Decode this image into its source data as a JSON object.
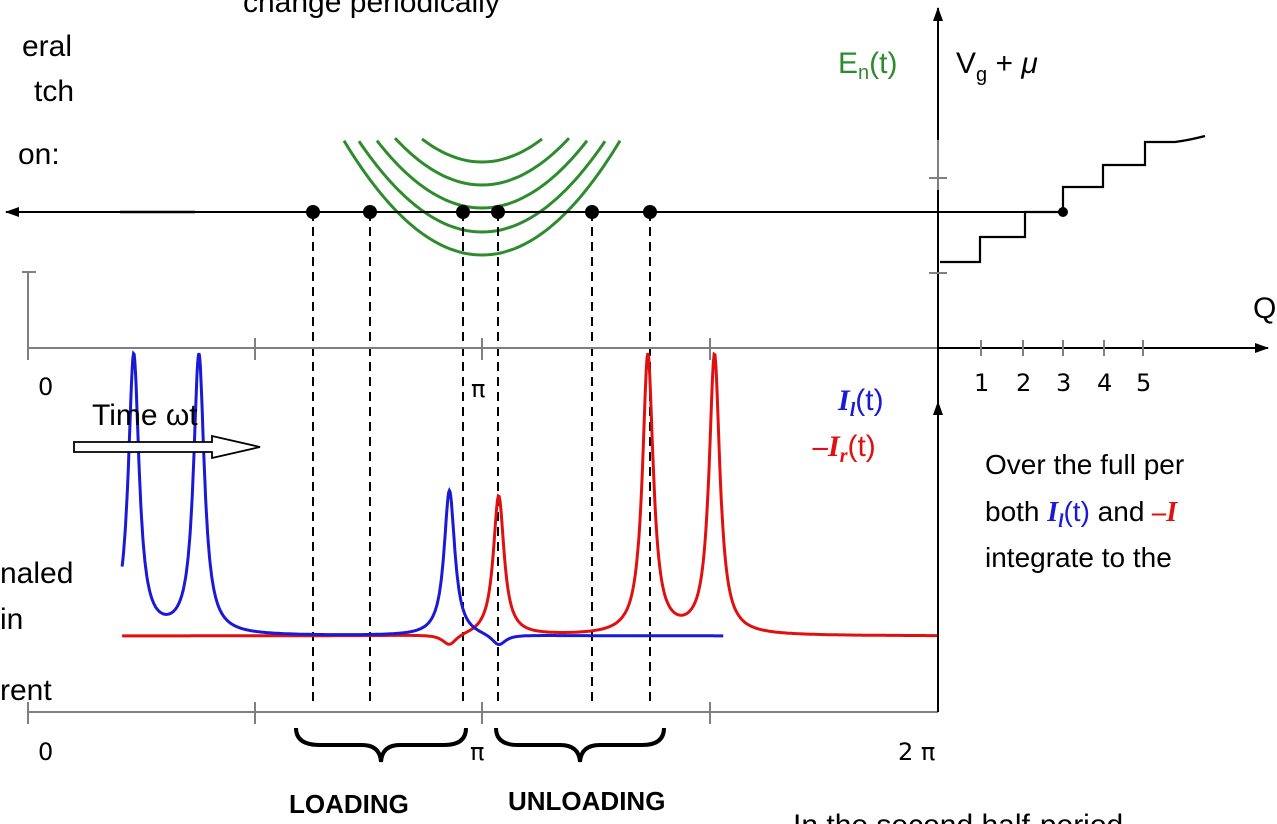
{
  "colors": {
    "green": "#2e8b2e",
    "blue": "#1a1ad6",
    "red": "#e01010",
    "black": "#000000",
    "gray": "#7a7a7a"
  },
  "text": {
    "top_caption": "change periodically",
    "left_line1": "eral",
    "left_line2": "tch",
    "left_line3": "on:",
    "left_lower1": "naled",
    "left_lower2": "in",
    "left_lower3": "rent",
    "en_label": "E",
    "en_sub": "n",
    "en_tail": "(t)",
    "vg_label": "V",
    "vg_sub": "g",
    "vg_tail": " + ",
    "mu": "μ",
    "q_label": "Q",
    "time_label": "Time ωt",
    "il_sym": "I",
    "il_sub": "l",
    "t_suffix": "(t)",
    "ir_minus": "–",
    "ir_sym": "I",
    "ir_sub": "r",
    "right_line1": "Over the full per",
    "right_line2_a": "both ",
    "right_line2_b": " and ",
    "right_line2_c": "–I",
    "right_line3": "integrate to the",
    "bottom_right": "In the second half-period",
    "loading": "LOADING",
    "unloading": "UNLOADING"
  },
  "ticks": {
    "top_zero": "0",
    "top_pi": "π",
    "bot_zero": "0",
    "bot_pi": "π",
    "bot_2pi": "2 π",
    "q_ticks": [
      "1",
      "2",
      "3",
      "4",
      "5"
    ]
  },
  "blue_peaks": [
    {
      "time": 0.73,
      "height": 1.0
    },
    {
      "time": 1.18,
      "height": 1.0
    },
    {
      "time": 2.91,
      "height": 0.52
    }
  ],
  "red_peaks": [
    {
      "time": 3.25,
      "height": 0.5
    },
    {
      "time": 4.28,
      "height": 1.0
    },
    {
      "time": 4.74,
      "height": 1.0
    }
  ],
  "dip_times": [
    2.91,
    3.25
  ]
}
